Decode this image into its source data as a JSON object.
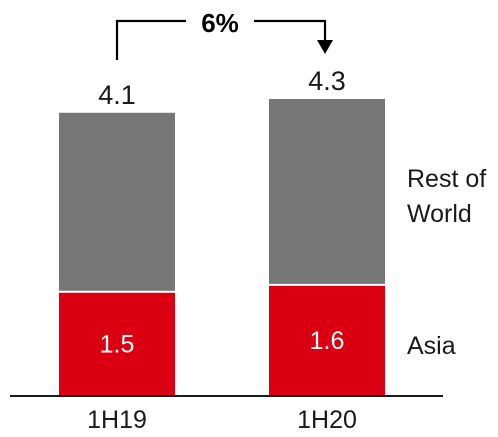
{
  "chart_data": {
    "type": "bar",
    "stacked": true,
    "categories": [
      "1H19",
      "1H20"
    ],
    "series": [
      {
        "name": "Asia",
        "values": [
          1.5,
          1.6
        ],
        "color": "#DB0011"
      },
      {
        "name": "Rest of World",
        "values": [
          2.6,
          2.7
        ],
        "color": "#767676"
      }
    ],
    "totals": [
      4.1,
      4.3
    ],
    "growth_label": "6%",
    "series_labels": {
      "asia": "Asia",
      "rest_of_world_line1": "Rest of",
      "rest_of_world_line2": "World"
    },
    "title": "",
    "xlabel": "",
    "ylabel": "",
    "ylim": [
      0,
      4.3
    ],
    "grid": false,
    "legend": "right"
  }
}
